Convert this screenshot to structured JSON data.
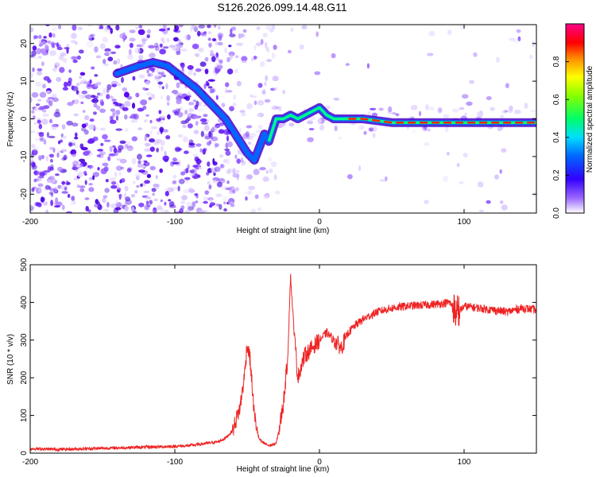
{
  "chart_data": [
    {
      "type": "heatmap",
      "title": "S126.2026.099.14.48.G11",
      "xlabel": "Height of straight line (km)",
      "ylabel": "Frequency (Hz)",
      "xlim": [
        -200,
        150
      ],
      "ylim": [
        -25,
        25
      ],
      "x_ticks": [
        -200,
        -100,
        0,
        100
      ],
      "y_ticks": [
        -20,
        -10,
        0,
        10,
        20
      ],
      "colorbar": {
        "label": "Normalized spectral amplitude",
        "range": [
          0,
          1
        ],
        "ticks": [
          "0.0",
          "0.2",
          "0.4",
          "0.6",
          "0.8"
        ]
      },
      "ridge": {
        "x": [
          -140,
          -125,
          -115,
          -105,
          -95,
          -85,
          -75,
          -65,
          -60,
          -55,
          -50,
          -45,
          -42,
          -38,
          -35,
          -30,
          -25,
          -20,
          -15,
          -10,
          -5,
          0,
          5,
          10,
          20,
          30,
          50,
          80,
          100,
          150
        ],
        "y": [
          12,
          14,
          15,
          14,
          11,
          8,
          4,
          0,
          -3,
          -6,
          -9,
          -11,
          -8,
          -4,
          -6,
          0,
          0,
          1,
          0,
          1,
          2,
          3,
          1,
          0,
          0,
          0,
          -1,
          -1,
          -1,
          -1
        ]
      }
    },
    {
      "type": "line",
      "xlabel": "Height of straight line (km)",
      "ylabel": "SNR (10 * v/v)",
      "xlim": [
        -200,
        150
      ],
      "ylim": [
        0,
        500
      ],
      "x_ticks": [
        -200,
        -100,
        0,
        100
      ],
      "y_ticks": [
        0,
        100,
        200,
        300,
        400,
        500
      ],
      "series": [
        {
          "name": "SNR",
          "color": "#ee2222",
          "x": [
            -200,
            -180,
            -160,
            -140,
            -120,
            -100,
            -90,
            -80,
            -70,
            -65,
            -60,
            -55,
            -52,
            -50,
            -48,
            -45,
            -42,
            -40,
            -35,
            -30,
            -28,
            -25,
            -22,
            -20,
            -18,
            -15,
            -12,
            -10,
            -5,
            0,
            5,
            10,
            15,
            20,
            25,
            30,
            40,
            50,
            60,
            80,
            90,
            95,
            100,
            110,
            120,
            130,
            140,
            150
          ],
          "values": [
            12,
            10,
            12,
            14,
            16,
            18,
            20,
            25,
            30,
            40,
            60,
            120,
            200,
            290,
            250,
            100,
            40,
            30,
            20,
            25,
            60,
            130,
            250,
            470,
            350,
            200,
            240,
            260,
            280,
            300,
            320,
            300,
            280,
            320,
            340,
            355,
            375,
            385,
            390,
            395,
            400,
            370,
            390,
            385,
            380,
            375,
            385,
            380
          ]
        }
      ]
    }
  ]
}
